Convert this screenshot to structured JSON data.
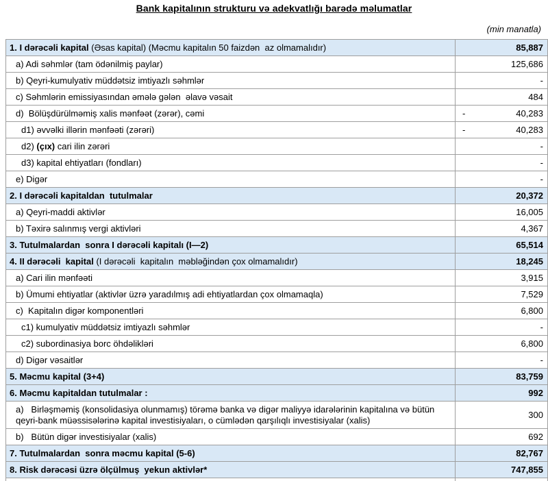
{
  "page": {
    "title": "Bank kapitalının strukturu və adekvatlığı barədə məlumatlar",
    "unit_note": "(min manatla)"
  },
  "colors": {
    "section_row_bg": "#d9e8f6",
    "border": "#9e9e9e",
    "text": "#000000"
  },
  "table": {
    "rows": [
      {
        "header": true,
        "indent": 0,
        "segments": [
          {
            "text": "1. I dərəcəli kapital ",
            "bold": true
          },
          {
            "text": "(Əsas kapital) (Məcmu kapitalın 50 faizdən  az olmamalıdır)",
            "bold": false
          }
        ],
        "minus": "",
        "value": "85,887"
      },
      {
        "header": false,
        "indent": 1,
        "segments": [
          {
            "text": "a) Adi səhmlər (tam ödənilmiş paylar)",
            "bold": false
          }
        ],
        "minus": "",
        "value": "125,686"
      },
      {
        "header": false,
        "indent": 1,
        "segments": [
          {
            "text": "b) Qeyri-kumulyativ müddətsiz imtiyazlı səhmlər",
            "bold": false
          }
        ],
        "minus": "",
        "value": "-"
      },
      {
        "header": false,
        "indent": 1,
        "segments": [
          {
            "text": "c) Səhmlərin emissiyasından əmələ gələn  əlavə vəsait",
            "bold": false
          }
        ],
        "minus": "",
        "value": "484"
      },
      {
        "header": false,
        "indent": 1,
        "segments": [
          {
            "text": "d)  Bölüşdürülməmiş xalis mənfəət (zərər), cəmi",
            "bold": false
          }
        ],
        "minus": "-",
        "value": "40,283"
      },
      {
        "header": false,
        "indent": 2,
        "segments": [
          {
            "text": "d1) əvvəlki illərin mənfəəti (zərəri)",
            "bold": false
          }
        ],
        "minus": "-",
        "value": "40,283"
      },
      {
        "header": false,
        "indent": 2,
        "segments": [
          {
            "text": "d2) ",
            "bold": false
          },
          {
            "text": "(çıx)",
            "bold": true
          },
          {
            "text": " cari ilin zərəri",
            "bold": false
          }
        ],
        "minus": "",
        "value": "-"
      },
      {
        "header": false,
        "indent": 2,
        "segments": [
          {
            "text": "d3) kapital ehtiyatları (fondları)",
            "bold": false
          }
        ],
        "minus": "",
        "value": "-"
      },
      {
        "header": false,
        "indent": 1,
        "segments": [
          {
            "text": "e) Digər",
            "bold": false
          }
        ],
        "minus": "",
        "value": "-"
      },
      {
        "header": true,
        "indent": 0,
        "segments": [
          {
            "text": "2. I dərəcəli kapitaldan  tutulmalar",
            "bold": true
          }
        ],
        "minus": "",
        "value": "20,372"
      },
      {
        "header": false,
        "indent": 1,
        "segments": [
          {
            "text": "a) Qeyri-maddi aktivlər",
            "bold": false
          }
        ],
        "minus": "",
        "value": "16,005"
      },
      {
        "header": false,
        "indent": 1,
        "segments": [
          {
            "text": "b) Təxirə salınmış vergi aktivləri",
            "bold": false
          }
        ],
        "minus": "",
        "value": "4,367"
      },
      {
        "header": true,
        "indent": 0,
        "segments": [
          {
            "text": "3. Tutulmalardan  sonra I dərəcəli kapitalı (I—2)",
            "bold": true
          }
        ],
        "minus": "",
        "value": "65,514"
      },
      {
        "header": true,
        "indent": 0,
        "segments": [
          {
            "text": "4. II dərəcəli  kapital ",
            "bold": true
          },
          {
            "text": "(I dərəcəli  kapitalın  məbləğindən çox olmamalıdır)",
            "bold": false
          }
        ],
        "minus": "",
        "value": "18,245"
      },
      {
        "header": false,
        "indent": 1,
        "segments": [
          {
            "text": "a) Cari ilin mənfəəti",
            "bold": false
          }
        ],
        "minus": "",
        "value": "3,915"
      },
      {
        "header": false,
        "indent": 1,
        "segments": [
          {
            "text": "b) Ümumi ehtiyatlar (aktivlər üzrə yaradılmış adi ehtiyatlardan çox olmamaqla)",
            "bold": false
          }
        ],
        "minus": "",
        "value": "7,529"
      },
      {
        "header": false,
        "indent": 1,
        "segments": [
          {
            "text": "c)  Kapitalın digər komponentləri",
            "bold": false
          }
        ],
        "minus": "",
        "value": "6,800"
      },
      {
        "header": false,
        "indent": 2,
        "segments": [
          {
            "text": "c1) kumulyativ müddətsiz imtiyazlı səhmlər",
            "bold": false
          }
        ],
        "minus": "",
        "value": "-"
      },
      {
        "header": false,
        "indent": 2,
        "segments": [
          {
            "text": "c2) subordinasiya borc öhdəlikləri",
            "bold": false
          }
        ],
        "minus": "",
        "value": "6,800"
      },
      {
        "header": false,
        "indent": 1,
        "segments": [
          {
            "text": "d) Digər vəsaitlər",
            "bold": false
          }
        ],
        "minus": "",
        "value": "-"
      },
      {
        "header": true,
        "indent": 0,
        "segments": [
          {
            "text": "5. Məcmu kapital (3+4)",
            "bold": true
          }
        ],
        "minus": "",
        "value": "83,759"
      },
      {
        "header": true,
        "indent": 0,
        "segments": [
          {
            "text": "6. Məcmu kapitaldan tutulmalar :",
            "bold": true
          }
        ],
        "minus": "",
        "value": "992"
      },
      {
        "header": false,
        "indent": 1,
        "tall": true,
        "segments": [
          {
            "text": "a)   Birləşməmiş (konsolidasiya olunmamış) törəmə banka və digər maliyyə idarələrinin kapitalına və bütün qeyri-bank müəssisələrinə kapital investisiyaları, o cümlədən qarşılıqlı investisiyalar (xalis)",
            "bold": false
          }
        ],
        "minus": "",
        "value": "300"
      },
      {
        "header": false,
        "indent": 1,
        "segments": [
          {
            "text": "b)   Bütün digər investisiyalar (xalis)",
            "bold": false
          }
        ],
        "minus": "",
        "value": "692"
      },
      {
        "header": true,
        "indent": 0,
        "segments": [
          {
            "text": "7. Tutulmalardan  sonra məcmu kapital (5-6)",
            "bold": true
          }
        ],
        "minus": "",
        "value": "82,767"
      },
      {
        "header": true,
        "indent": 0,
        "segments": [
          {
            "text": "8. Risk dərəcəsi üzrə ölçülmuş  yekun aktivlər*",
            "bold": true
          }
        ],
        "minus": "",
        "value": "747,855"
      },
      {
        "spacer": true
      }
    ]
  }
}
